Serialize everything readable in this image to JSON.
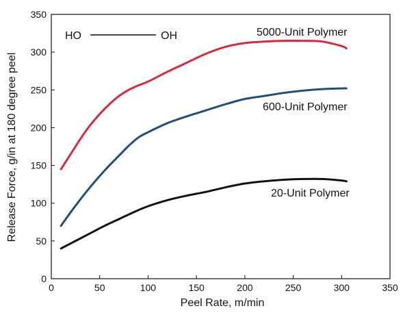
{
  "chart_data": {
    "type": "line",
    "xlabel": "Peel Rate, m/min",
    "ylabel": "Release Force, g/in at 180 degree peel",
    "xlim": [
      0,
      350
    ],
    "ylim": [
      0,
      350
    ],
    "xticks": [
      0,
      50,
      100,
      150,
      200,
      250,
      300,
      350
    ],
    "yticks": [
      0,
      50,
      100,
      150,
      200,
      250,
      300,
      350
    ],
    "grid": false,
    "annotation": {
      "left": "HO",
      "right": "OH"
    },
    "series": [
      {
        "name": "5000-Unit Polymer",
        "color": "#d62a3c",
        "x": [
          10,
          20,
          30,
          40,
          50,
          60,
          70,
          80,
          90,
          100,
          120,
          140,
          160,
          180,
          200,
          220,
          240,
          260,
          280,
          300,
          305
        ],
        "y": [
          145,
          165,
          185,
          203,
          218,
          231,
          242,
          250,
          256,
          261,
          274,
          286,
          298,
          307,
          312,
          314,
          315,
          315,
          314,
          308,
          305
        ]
      },
      {
        "name": "600-Unit Polymer",
        "color": "#1f4e79",
        "x": [
          10,
          20,
          30,
          40,
          50,
          60,
          70,
          80,
          90,
          100,
          120,
          140,
          160,
          180,
          200,
          220,
          240,
          260,
          280,
          300,
          305
        ],
        "y": [
          70,
          88,
          105,
          121,
          136,
          150,
          163,
          176,
          187,
          194,
          206,
          215,
          223,
          231,
          238,
          242,
          246,
          249,
          251,
          252,
          252
        ]
      },
      {
        "name": "20-Unit Polymer",
        "color": "#111111",
        "x": [
          10,
          25,
          40,
          55,
          70,
          85,
          100,
          120,
          140,
          160,
          180,
          200,
          220,
          240,
          260,
          280,
          300,
          305
        ],
        "y": [
          40,
          50,
          60,
          70,
          79,
          88,
          96,
          104,
          110,
          115,
          121,
          126,
          129,
          131,
          132,
          132,
          130,
          129
        ]
      }
    ]
  }
}
